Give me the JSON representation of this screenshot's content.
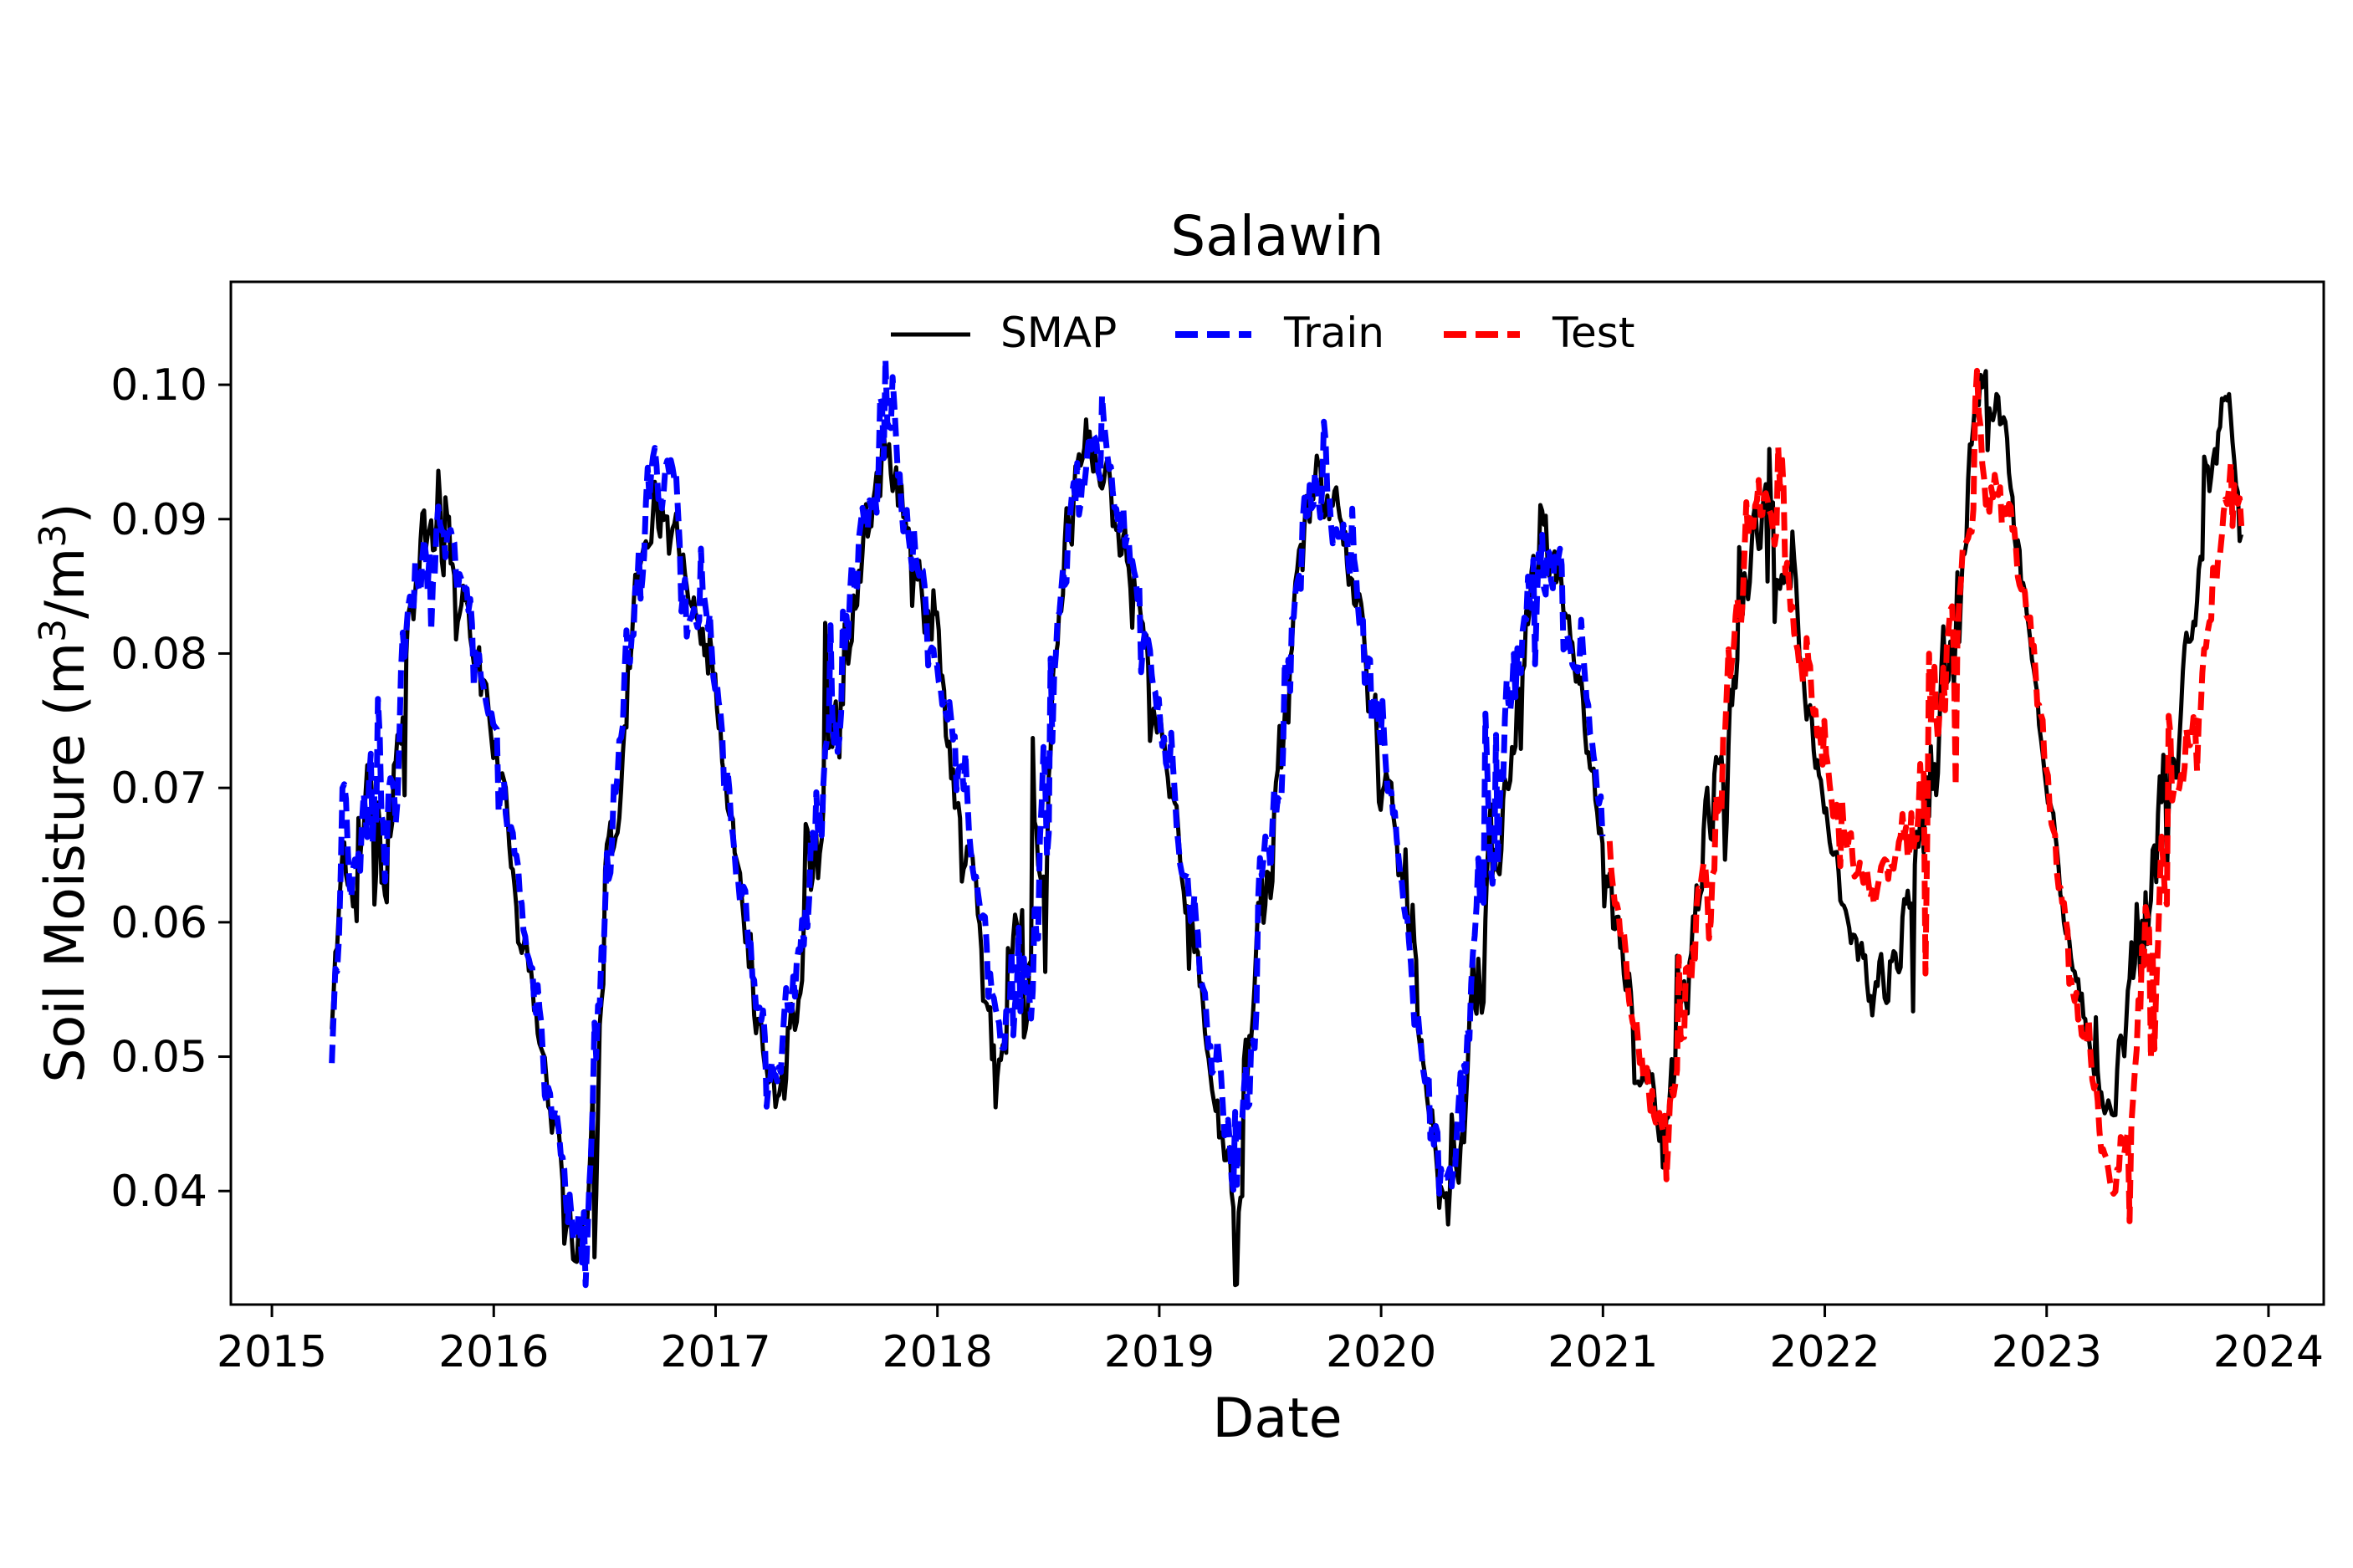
{
  "chart_data": {
    "type": "line",
    "title": "Salawin",
    "xlabel": "Date",
    "ylabel": "Soil Moisture (m³/m³)",
    "x_ticks": [
      2015,
      2016,
      2017,
      2018,
      2019,
      2020,
      2021,
      2022,
      2023,
      2024
    ],
    "x_tick_labels": [
      "2015",
      "2016",
      "2017",
      "2018",
      "2019",
      "2020",
      "2021",
      "2022",
      "2023",
      "2024"
    ],
    "y_ticks": [
      0.04,
      0.05,
      0.06,
      0.07,
      0.08,
      0.09,
      0.1
    ],
    "y_tick_labels": [
      "0.04",
      "0.05",
      "0.06",
      "0.07",
      "0.08",
      "0.09",
      "0.10"
    ],
    "xlim": [
      2014.815,
      2024.249
    ],
    "ylim": [
      0.03155,
      0.10766
    ],
    "grid": false,
    "legend_position": "upper center, horizontal",
    "noise": {
      "amp": 0.004,
      "spike_prob": 0.12,
      "spike_max": 0.014,
      "step_years": 0.008
    },
    "series": [
      {
        "name": "SMAP",
        "color": "#000000",
        "style": "solid",
        "width": 5,
        "seed": 11,
        "anchors": [
          [
            2015.27,
            0.052
          ],
          [
            2015.32,
            0.066
          ],
          [
            2015.38,
            0.06
          ],
          [
            2015.45,
            0.07
          ],
          [
            2015.52,
            0.064
          ],
          [
            2015.6,
            0.08
          ],
          [
            2015.68,
            0.088
          ],
          [
            2015.75,
            0.089
          ],
          [
            2015.82,
            0.086
          ],
          [
            2015.9,
            0.082
          ],
          [
            2016.0,
            0.074
          ],
          [
            2016.1,
            0.063
          ],
          [
            2016.22,
            0.05
          ],
          [
            2016.32,
            0.04
          ],
          [
            2016.4,
            0.0365
          ],
          [
            2016.47,
            0.052
          ],
          [
            2016.55,
            0.07
          ],
          [
            2016.62,
            0.082
          ],
          [
            2016.7,
            0.091
          ],
          [
            2016.8,
            0.0915
          ],
          [
            2016.88,
            0.086
          ],
          [
            2017.0,
            0.077
          ],
          [
            2017.1,
            0.063
          ],
          [
            2017.2,
            0.052
          ],
          [
            2017.28,
            0.047
          ],
          [
            2017.36,
            0.055
          ],
          [
            2017.45,
            0.066
          ],
          [
            2017.55,
            0.075
          ],
          [
            2017.65,
            0.086
          ],
          [
            2017.75,
            0.0945
          ],
          [
            2017.82,
            0.092
          ],
          [
            2017.92,
            0.086
          ],
          [
            2018.02,
            0.077
          ],
          [
            2018.12,
            0.068
          ],
          [
            2018.22,
            0.057
          ],
          [
            2018.3,
            0.049
          ],
          [
            2018.36,
            0.059
          ],
          [
            2018.42,
            0.056
          ],
          [
            2018.5,
            0.071
          ],
          [
            2018.58,
            0.088
          ],
          [
            2018.66,
            0.096
          ],
          [
            2018.74,
            0.093
          ],
          [
            2018.85,
            0.088
          ],
          [
            2018.95,
            0.08
          ],
          [
            2019.05,
            0.07
          ],
          [
            2019.15,
            0.059
          ],
          [
            2019.25,
            0.047
          ],
          [
            2019.35,
            0.038
          ],
          [
            2019.42,
            0.05
          ],
          [
            2019.5,
            0.066
          ],
          [
            2019.58,
            0.077
          ],
          [
            2019.67,
            0.09
          ],
          [
            2019.72,
            0.0935
          ],
          [
            2019.8,
            0.09
          ],
          [
            2019.9,
            0.083
          ],
          [
            2020.0,
            0.075
          ],
          [
            2020.1,
            0.062
          ],
          [
            2020.2,
            0.049
          ],
          [
            2020.3,
            0.0375
          ],
          [
            2020.38,
            0.047
          ],
          [
            2020.46,
            0.059
          ],
          [
            2020.54,
            0.068
          ],
          [
            2020.62,
            0.079
          ],
          [
            2020.7,
            0.087
          ],
          [
            2020.78,
            0.0865
          ],
          [
            2020.88,
            0.08
          ],
          [
            2020.98,
            0.068
          ],
          [
            2021.08,
            0.058
          ],
          [
            2021.18,
            0.049
          ],
          [
            2021.28,
            0.0445
          ],
          [
            2021.36,
            0.053
          ],
          [
            2021.45,
            0.063
          ],
          [
            2021.55,
            0.074
          ],
          [
            2021.65,
            0.086
          ],
          [
            2021.72,
            0.0905
          ],
          [
            2021.8,
            0.088
          ],
          [
            2021.9,
            0.079
          ],
          [
            2022.0,
            0.068
          ],
          [
            2022.1,
            0.06
          ],
          [
            2022.2,
            0.0555
          ],
          [
            2022.3,
            0.057
          ],
          [
            2022.4,
            0.064
          ],
          [
            2022.5,
            0.073
          ],
          [
            2022.6,
            0.086
          ],
          [
            2022.68,
            0.098
          ],
          [
            2022.74,
            0.1
          ],
          [
            2022.82,
            0.094
          ],
          [
            2022.92,
            0.082
          ],
          [
            2023.02,
            0.068
          ],
          [
            2023.12,
            0.056
          ],
          [
            2023.22,
            0.049
          ],
          [
            2023.3,
            0.0465
          ],
          [
            2023.38,
            0.055
          ],
          [
            2023.48,
            0.065
          ],
          [
            2023.58,
            0.073
          ],
          [
            2023.68,
            0.083
          ],
          [
            2023.76,
            0.094
          ],
          [
            2023.82,
            0.099
          ],
          [
            2023.86,
            0.094
          ],
          [
            2023.88,
            0.091
          ]
        ]
      },
      {
        "name": "Train",
        "color": "#0000ff",
        "style": "dashed",
        "width": 7,
        "dash": "22 10",
        "seed": 23,
        "anchors": [
          [
            2015.27,
            0.054
          ],
          [
            2015.32,
            0.067
          ],
          [
            2015.38,
            0.061
          ],
          [
            2015.45,
            0.071
          ],
          [
            2015.52,
            0.065
          ],
          [
            2015.6,
            0.081
          ],
          [
            2015.68,
            0.089
          ],
          [
            2015.75,
            0.09
          ],
          [
            2015.82,
            0.087
          ],
          [
            2015.9,
            0.083
          ],
          [
            2016.0,
            0.074
          ],
          [
            2016.1,
            0.064
          ],
          [
            2016.22,
            0.051
          ],
          [
            2016.32,
            0.041
          ],
          [
            2016.4,
            0.038
          ],
          [
            2016.47,
            0.053
          ],
          [
            2016.55,
            0.071
          ],
          [
            2016.62,
            0.083
          ],
          [
            2016.7,
            0.092
          ],
          [
            2016.8,
            0.092
          ],
          [
            2016.88,
            0.087
          ],
          [
            2017.0,
            0.077
          ],
          [
            2017.1,
            0.064
          ],
          [
            2017.2,
            0.053
          ],
          [
            2017.28,
            0.049
          ],
          [
            2017.36,
            0.057
          ],
          [
            2017.45,
            0.067
          ],
          [
            2017.55,
            0.076
          ],
          [
            2017.65,
            0.087
          ],
          [
            2017.75,
            0.094
          ],
          [
            2017.82,
            0.092
          ],
          [
            2017.92,
            0.086
          ],
          [
            2018.02,
            0.078
          ],
          [
            2018.12,
            0.069
          ],
          [
            2018.22,
            0.058
          ],
          [
            2018.3,
            0.051
          ],
          [
            2018.36,
            0.06
          ],
          [
            2018.42,
            0.058
          ],
          [
            2018.5,
            0.072
          ],
          [
            2018.58,
            0.089
          ],
          [
            2018.66,
            0.095
          ],
          [
            2018.74,
            0.093
          ],
          [
            2018.85,
            0.088
          ],
          [
            2018.95,
            0.081
          ],
          [
            2019.05,
            0.071
          ],
          [
            2019.15,
            0.06
          ],
          [
            2019.25,
            0.049
          ],
          [
            2019.35,
            0.039
          ],
          [
            2019.42,
            0.051
          ],
          [
            2019.5,
            0.067
          ],
          [
            2019.58,
            0.078
          ],
          [
            2019.67,
            0.091
          ],
          [
            2019.72,
            0.093
          ],
          [
            2019.8,
            0.09
          ],
          [
            2019.9,
            0.084
          ],
          [
            2020.0,
            0.075
          ],
          [
            2020.1,
            0.063
          ],
          [
            2020.2,
            0.05
          ],
          [
            2020.3,
            0.039
          ],
          [
            2020.38,
            0.05
          ],
          [
            2020.46,
            0.063
          ],
          [
            2020.54,
            0.071
          ],
          [
            2020.62,
            0.081
          ],
          [
            2020.7,
            0.088
          ],
          [
            2020.78,
            0.087
          ],
          [
            2020.88,
            0.081
          ],
          [
            2020.96,
            0.072
          ],
          [
            2021.0,
            0.067
          ]
        ]
      },
      {
        "name": "Test",
        "color": "#ff0000",
        "style": "dashed",
        "width": 7,
        "dash": "22 10",
        "seed": 37,
        "anchors": [
          [
            2021.03,
            0.066
          ],
          [
            2021.1,
            0.057
          ],
          [
            2021.18,
            0.049
          ],
          [
            2021.27,
            0.0445
          ],
          [
            2021.33,
            0.05
          ],
          [
            2021.4,
            0.059
          ],
          [
            2021.48,
            0.068
          ],
          [
            2021.57,
            0.078
          ],
          [
            2021.65,
            0.087
          ],
          [
            2021.72,
            0.091
          ],
          [
            2021.8,
            0.088
          ],
          [
            2021.9,
            0.08
          ],
          [
            2022.0,
            0.072
          ],
          [
            2022.08,
            0.067
          ],
          [
            2022.16,
            0.064
          ],
          [
            2022.24,
            0.062
          ],
          [
            2022.32,
            0.063
          ],
          [
            2022.42,
            0.068
          ],
          [
            2022.52,
            0.075
          ],
          [
            2022.62,
            0.086
          ],
          [
            2022.7,
            0.092
          ],
          [
            2022.76,
            0.0925
          ],
          [
            2022.84,
            0.089
          ],
          [
            2022.94,
            0.079
          ],
          [
            2023.04,
            0.066
          ],
          [
            2023.14,
            0.053
          ],
          [
            2023.24,
            0.045
          ],
          [
            2023.32,
            0.0405
          ],
          [
            2023.4,
            0.052
          ],
          [
            2023.5,
            0.063
          ],
          [
            2023.6,
            0.07
          ],
          [
            2023.7,
            0.08
          ],
          [
            2023.78,
            0.09
          ],
          [
            2023.84,
            0.0945
          ],
          [
            2023.88,
            0.0895
          ]
        ]
      }
    ]
  }
}
